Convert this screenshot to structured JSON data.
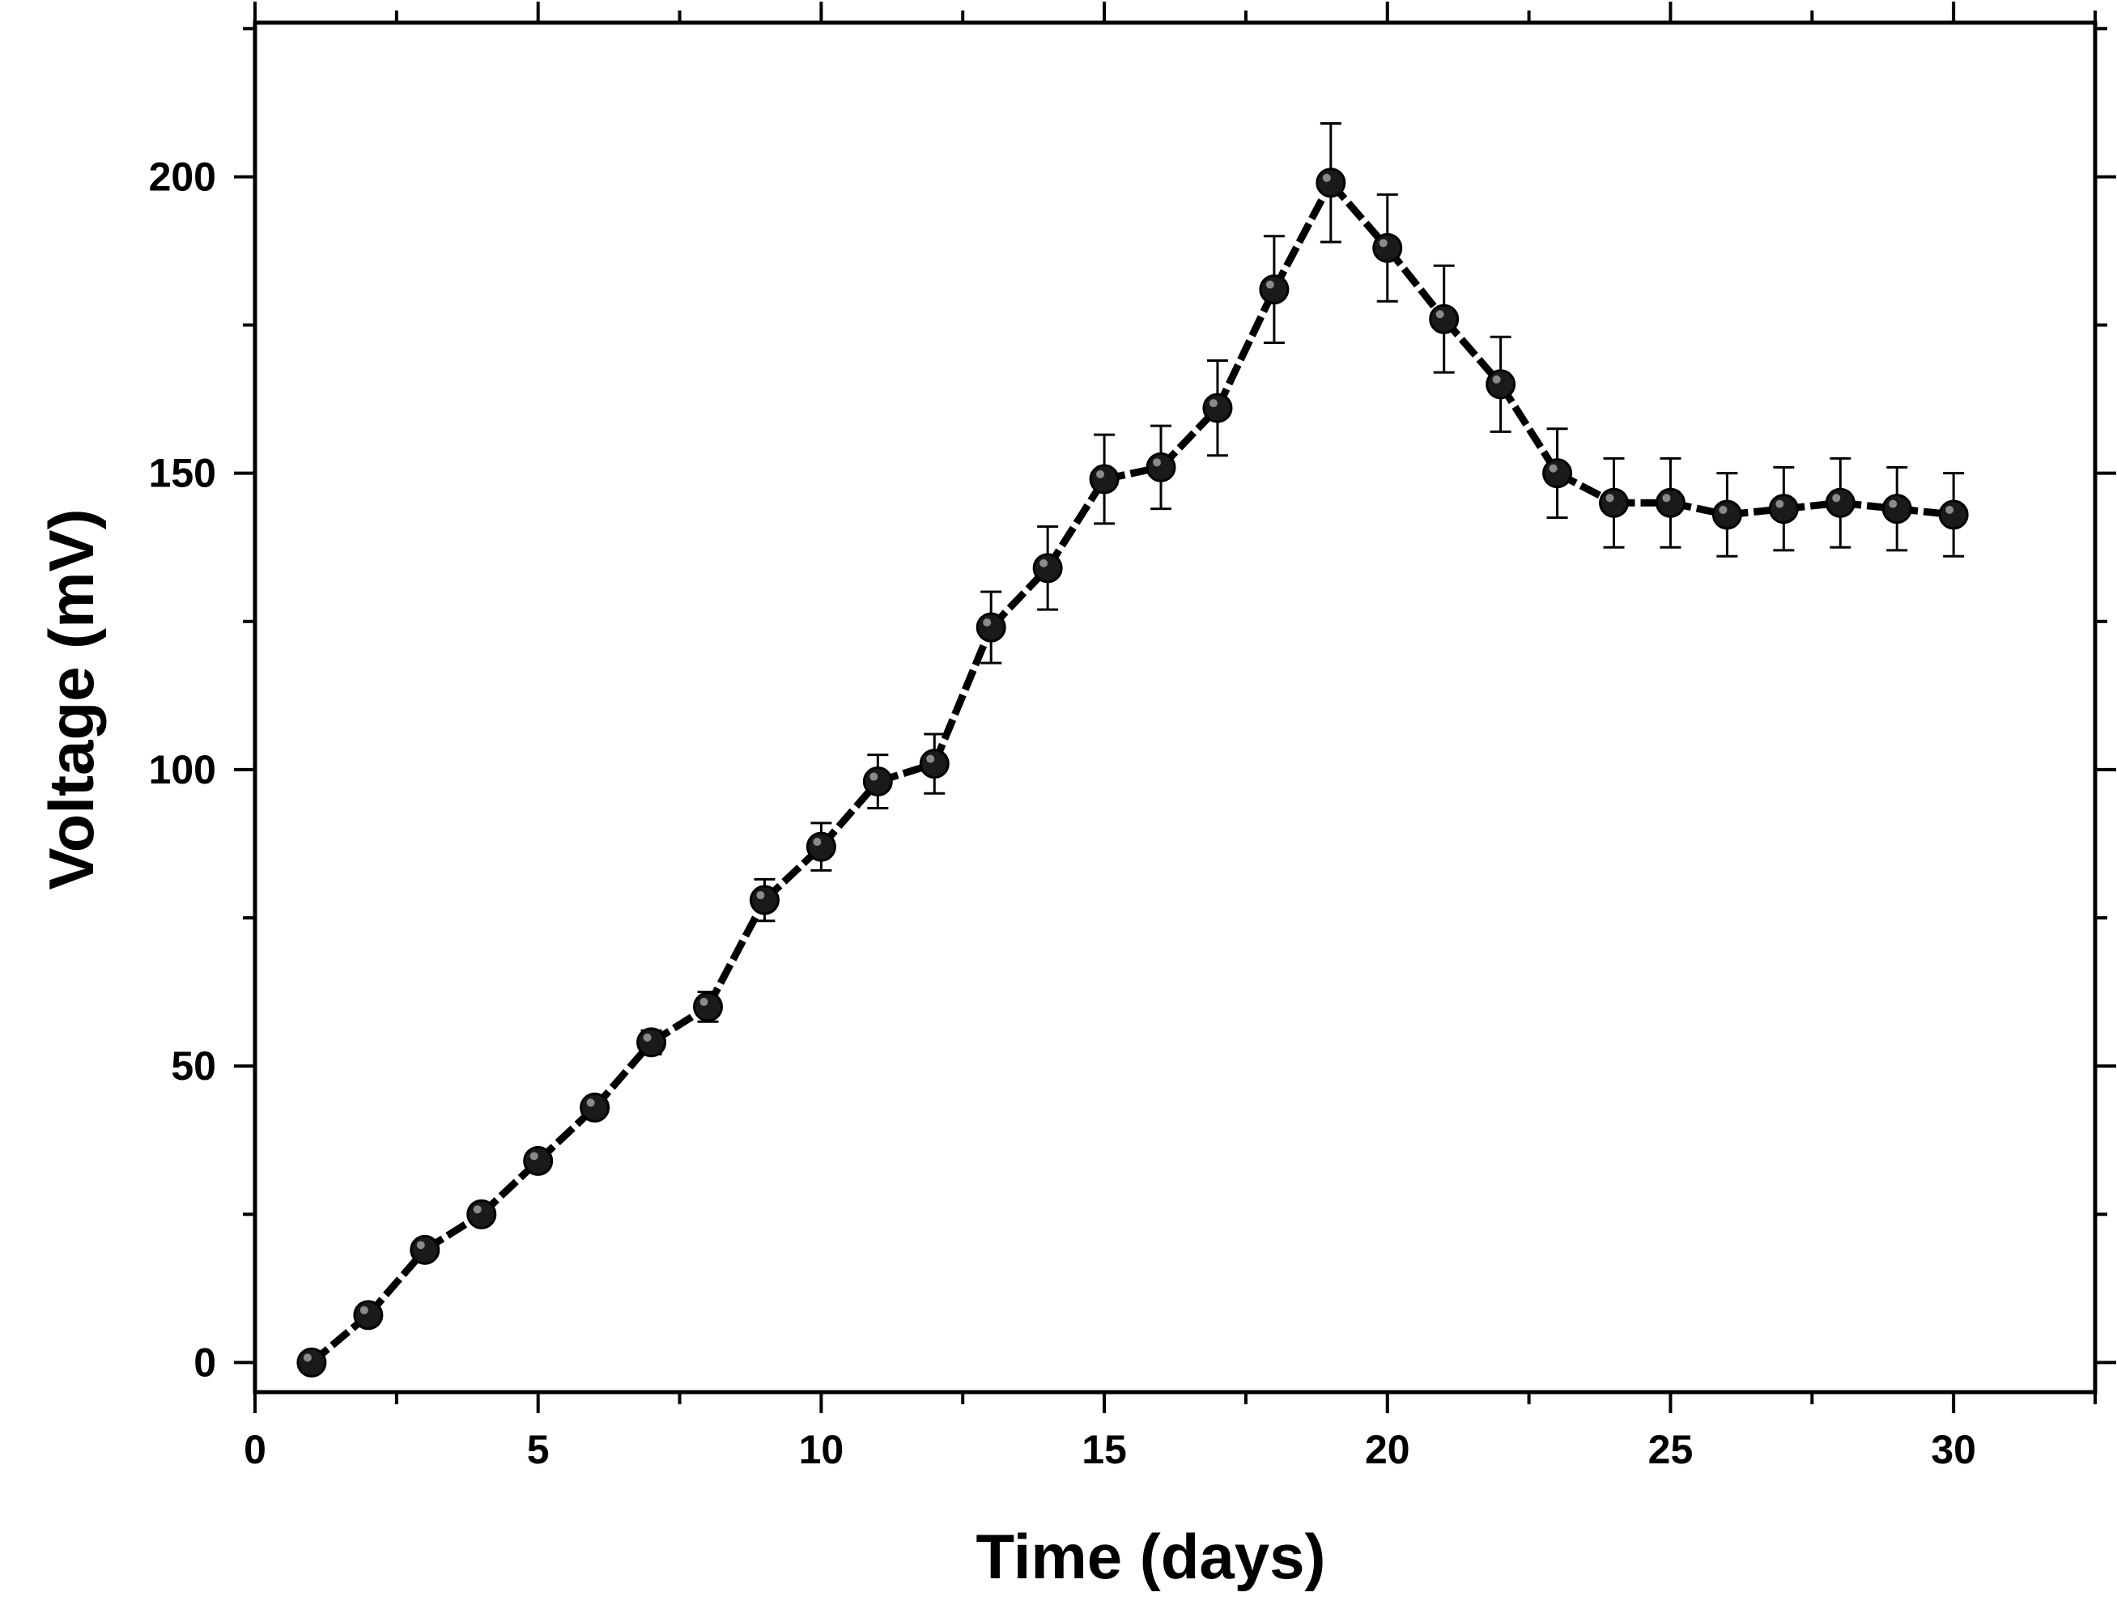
{
  "chart_data": {
    "type": "line",
    "title": "",
    "xlabel": "Time (days)",
    "ylabel": "Voltage (mV)",
    "xlim": [
      0,
      32.5
    ],
    "ylim": [
      -5,
      226
    ],
    "xticks": [
      0,
      5,
      10,
      15,
      20,
      25,
      30
    ],
    "yticks": [
      0,
      50,
      100,
      150,
      200
    ],
    "grid": false,
    "legend": "none",
    "series": [
      {
        "name": "Voltage",
        "color": "#000000",
        "marker_color": "#1a1a1a",
        "x": [
          1,
          2,
          3,
          4,
          5,
          6,
          7,
          8,
          9,
          10,
          11,
          12,
          13,
          14,
          15,
          16,
          17,
          18,
          19,
          20,
          21,
          22,
          23,
          24,
          25,
          26,
          27,
          28,
          29,
          30
        ],
        "y": [
          0,
          8,
          19,
          25,
          34,
          43,
          54,
          60,
          78,
          87,
          98,
          101,
          124,
          134,
          149,
          151,
          161,
          181,
          199,
          188,
          176,
          165,
          150,
          145,
          145,
          143,
          144,
          145,
          144,
          143
        ],
        "error": [
          0,
          0,
          0,
          0,
          0,
          0,
          2,
          2.5,
          3.5,
          4,
          4.5,
          5,
          6,
          7,
          7.5,
          7,
          8,
          9,
          10,
          9,
          9,
          8,
          7.5,
          7.5,
          7.5,
          7,
          7,
          7.5,
          7,
          7
        ]
      }
    ]
  }
}
